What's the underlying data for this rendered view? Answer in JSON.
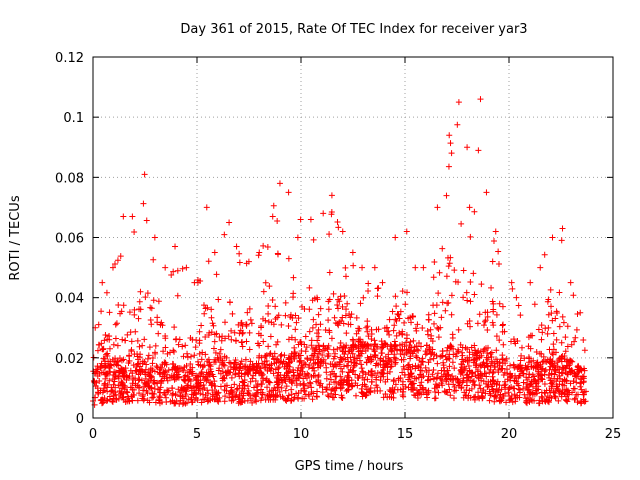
{
  "chart_data": {
    "type": "scatter",
    "title": "Day 361 of 2015, Rate Of TEC Index for receiver yar3",
    "xlabel": "GPS time / hours",
    "ylabel": "ROTI / TECUs",
    "xlim": [
      0,
      25
    ],
    "ylim": [
      0,
      0.12
    ],
    "x_ticks": [
      {
        "value": 0,
        "label": "0"
      },
      {
        "value": 5,
        "label": "5"
      },
      {
        "value": 10,
        "label": "10"
      },
      {
        "value": 15,
        "label": "15"
      },
      {
        "value": 20,
        "label": "20"
      },
      {
        "value": 25,
        "label": "25"
      }
    ],
    "y_ticks": [
      {
        "value": 0,
        "label": "0"
      },
      {
        "value": 0.02,
        "label": "0.02"
      },
      {
        "value": 0.04,
        "label": "0.04"
      },
      {
        "value": 0.06,
        "label": "0.06"
      },
      {
        "value": 0.08,
        "label": "0.08"
      },
      {
        "value": 0.1,
        "label": "0.1"
      },
      {
        "value": 0.12,
        "label": "0.12"
      }
    ],
    "grid": true,
    "marker": "plus",
    "color": "#ff0000",
    "x_range_of_data": [
      0,
      23.7
    ],
    "envelope": {
      "x": [
        0,
        0.5,
        1,
        1.5,
        2,
        2.5,
        3,
        3.5,
        4,
        4.5,
        5,
        5.5,
        6,
        6.5,
        7,
        7.5,
        8,
        8.5,
        9,
        9.5,
        10,
        10.5,
        11,
        11.5,
        12,
        12.5,
        13,
        13.5,
        14,
        14.5,
        15,
        15.5,
        16,
        16.5,
        17,
        17.5,
        18,
        18.5,
        19,
        19.5,
        20,
        20.5,
        21,
        21.5,
        22,
        22.5,
        23,
        23.5
      ],
      "typical": [
        0.012,
        0.014,
        0.014,
        0.015,
        0.016,
        0.015,
        0.014,
        0.014,
        0.013,
        0.013,
        0.014,
        0.015,
        0.015,
        0.014,
        0.014,
        0.014,
        0.015,
        0.016,
        0.016,
        0.016,
        0.017,
        0.017,
        0.018,
        0.018,
        0.018,
        0.019,
        0.019,
        0.019,
        0.019,
        0.019,
        0.019,
        0.019,
        0.018,
        0.018,
        0.018,
        0.018,
        0.017,
        0.017,
        0.016,
        0.015,
        0.014,
        0.013,
        0.013,
        0.014,
        0.015,
        0.015,
        0.014,
        0.012
      ],
      "max": [
        0.03,
        0.045,
        0.05,
        0.067,
        0.067,
        0.081,
        0.06,
        0.05,
        0.057,
        0.05,
        0.045,
        0.07,
        0.055,
        0.065,
        0.057,
        0.052,
        0.055,
        0.067,
        0.078,
        0.075,
        0.066,
        0.066,
        0.068,
        0.074,
        0.062,
        0.055,
        0.05,
        0.05,
        0.045,
        0.06,
        0.062,
        0.05,
        0.05,
        0.07,
        0.094,
        0.105,
        0.09,
        0.106,
        0.075,
        0.062,
        0.045,
        0.04,
        0.045,
        0.05,
        0.06,
        0.063,
        0.045,
        0.035
      ]
    }
  }
}
